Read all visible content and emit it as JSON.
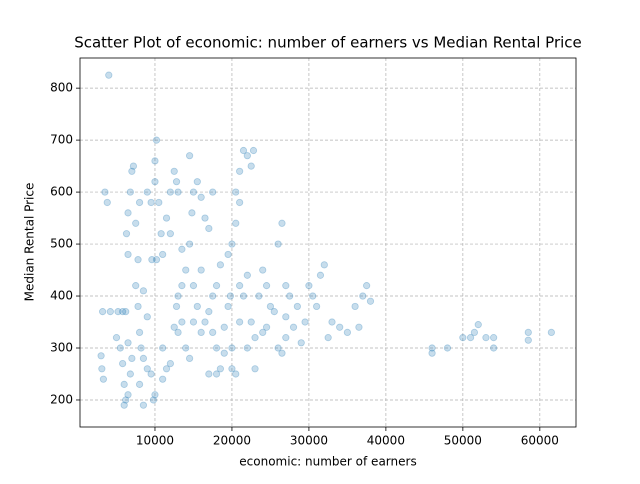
{
  "chart_data": {
    "type": "scatter",
    "title": "Scatter Plot of economic: number of earners vs Median Rental Price",
    "xlabel": "economic: number of earners",
    "ylabel": "Median Rental Price",
    "color": "#1f77b4",
    "grid": true,
    "xlim": [
      260,
      64700
    ],
    "ylim": [
      148,
      858
    ],
    "xticks": [
      10000,
      20000,
      30000,
      40000,
      50000,
      60000
    ],
    "yticks": [
      200,
      300,
      400,
      500,
      600,
      700,
      800
    ],
    "x": [
      4000,
      3500,
      3800,
      3200,
      4200,
      3000,
      3100,
      3300,
      5200,
      5800,
      6200,
      5000,
      5500,
      5800,
      6000,
      6200,
      6000,
      6500,
      6800,
      7000,
      6300,
      6500,
      6800,
      7000,
      7200,
      6500,
      7500,
      7800,
      7800,
      8000,
      8200,
      8500,
      9000,
      9500,
      9800,
      10000,
      8000,
      8500,
      9000,
      9500,
      10000,
      10000,
      10200,
      10500,
      10800,
      9600,
      10200,
      11000,
      11500,
      12000,
      12500,
      12800,
      13000,
      11000,
      11500,
      11000,
      12000,
      12500,
      12800,
      13000,
      13500,
      14000,
      14500,
      14800,
      15000,
      14500,
      15500,
      16000,
      16500,
      17000,
      13000,
      13500,
      14000,
      14500,
      15000,
      15500,
      16000,
      16500,
      17000,
      17500,
      18000,
      17500,
      18000,
      18500,
      17000,
      18000,
      16000,
      19000,
      19500,
      20000,
      20000,
      20500,
      19500,
      20000,
      20500,
      21000,
      21000,
      21500,
      22000,
      22500,
      22800,
      20500,
      19800,
      21000,
      21500,
      22000,
      22500,
      23000,
      23500,
      24000,
      24500,
      25000,
      25500,
      26000,
      26500,
      26500,
      27000,
      27000,
      27500,
      28000,
      28500,
      29000,
      29500,
      30000,
      30500,
      31000,
      31500,
      32000,
      32500,
      33000,
      34000,
      35000,
      36000,
      36500,
      37000,
      37500,
      38000,
      46000,
      46000,
      48000,
      50000,
      51000,
      51500,
      52000,
      53000,
      54000,
      54000,
      58500,
      58500,
      61500,
      27000,
      26000,
      24000,
      23000,
      22000,
      19000,
      7500,
      8500,
      12000,
      13500,
      9000,
      6500,
      8000,
      15000,
      17500,
      24500,
      18500,
      21000
    ],
    "values": [
      825,
      600,
      580,
      370,
      370,
      285,
      260,
      240,
      370,
      370,
      370,
      320,
      300,
      270,
      230,
      200,
      190,
      210,
      250,
      280,
      520,
      560,
      600,
      640,
      650,
      480,
      540,
      470,
      380,
      330,
      300,
      280,
      260,
      250,
      200,
      210,
      230,
      190,
      600,
      580,
      620,
      660,
      700,
      580,
      520,
      470,
      470,
      480,
      550,
      600,
      640,
      620,
      600,
      300,
      260,
      240,
      270,
      340,
      380,
      400,
      420,
      450,
      500,
      560,
      600,
      670,
      620,
      590,
      550,
      530,
      330,
      350,
      300,
      280,
      350,
      380,
      330,
      350,
      370,
      400,
      420,
      330,
      300,
      260,
      250,
      250,
      450,
      340,
      380,
      300,
      260,
      250,
      480,
      500,
      540,
      580,
      640,
      680,
      670,
      650,
      680,
      600,
      400,
      420,
      400,
      440,
      350,
      320,
      400,
      450,
      420,
      380,
      370,
      500,
      540,
      290,
      320,
      420,
      400,
      340,
      380,
      310,
      350,
      420,
      400,
      380,
      440,
      460,
      320,
      350,
      340,
      330,
      380,
      340,
      400,
      420,
      390,
      300,
      290,
      300,
      320,
      320,
      330,
      345,
      320,
      320,
      300,
      330,
      315,
      330,
      360,
      300,
      330,
      260,
      300,
      290,
      420,
      410,
      520,
      490,
      360,
      310,
      580,
      420,
      600,
      340,
      460,
      350
    ]
  }
}
